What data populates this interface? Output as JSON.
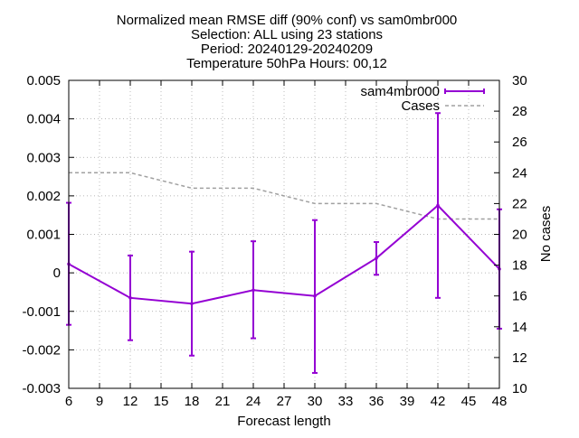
{
  "chart_data": {
    "type": "line",
    "title_lines": [
      "Normalized mean RMSE diff (90% conf) vs sam0mbr000",
      "Selection: ALL using    23 stations",
      "Period: 20240129-20240209",
      "Temperature 50hPa   Hours: 00,12"
    ],
    "xlabel": "Forecast length",
    "ylabel": "",
    "y2label": "No cases",
    "xlim": [
      6,
      48
    ],
    "ylim": [
      -0.003,
      0.005
    ],
    "y2lim": [
      10,
      30
    ],
    "x_ticks": [
      "6",
      "9",
      "12",
      "15",
      "18",
      "21",
      "24",
      "27",
      "30",
      "33",
      "36",
      "39",
      "42",
      "45",
      "48"
    ],
    "y_ticks": [
      "0.005",
      "0.004",
      "0.003",
      "0.002",
      "0.001",
      "0",
      "-0.001",
      "-0.002",
      "-0.003"
    ],
    "y2_ticks": [
      "30",
      "28",
      "26",
      "24",
      "22",
      "20",
      "18",
      "16",
      "14",
      "12",
      "10"
    ],
    "grid": true,
    "legend_position": "top-right",
    "series": [
      {
        "name": "sam4mbr000",
        "color": "#9400d3",
        "axis": "y",
        "x": [
          6,
          12,
          18,
          24,
          30,
          36,
          42,
          48
        ],
        "values": [
          0.00023,
          -0.00065,
          -0.0008,
          -0.00045,
          -0.0006,
          0.00038,
          0.00175,
          0.0001
        ],
        "err_low": [
          -0.00135,
          -0.00175,
          -0.00215,
          -0.0017,
          -0.0026,
          -5e-05,
          -0.00065,
          -0.00145
        ],
        "err_high": [
          0.00182,
          0.00045,
          0.00055,
          0.00082,
          0.00137,
          0.0008,
          0.00415,
          0.00165
        ]
      },
      {
        "name": "Cases",
        "color": "#a0a0a0",
        "axis": "y2",
        "x": [
          6,
          12,
          18,
          24,
          30,
          36,
          42,
          48
        ],
        "values": [
          24,
          24,
          23,
          23,
          22,
          22,
          21,
          21
        ]
      }
    ]
  }
}
